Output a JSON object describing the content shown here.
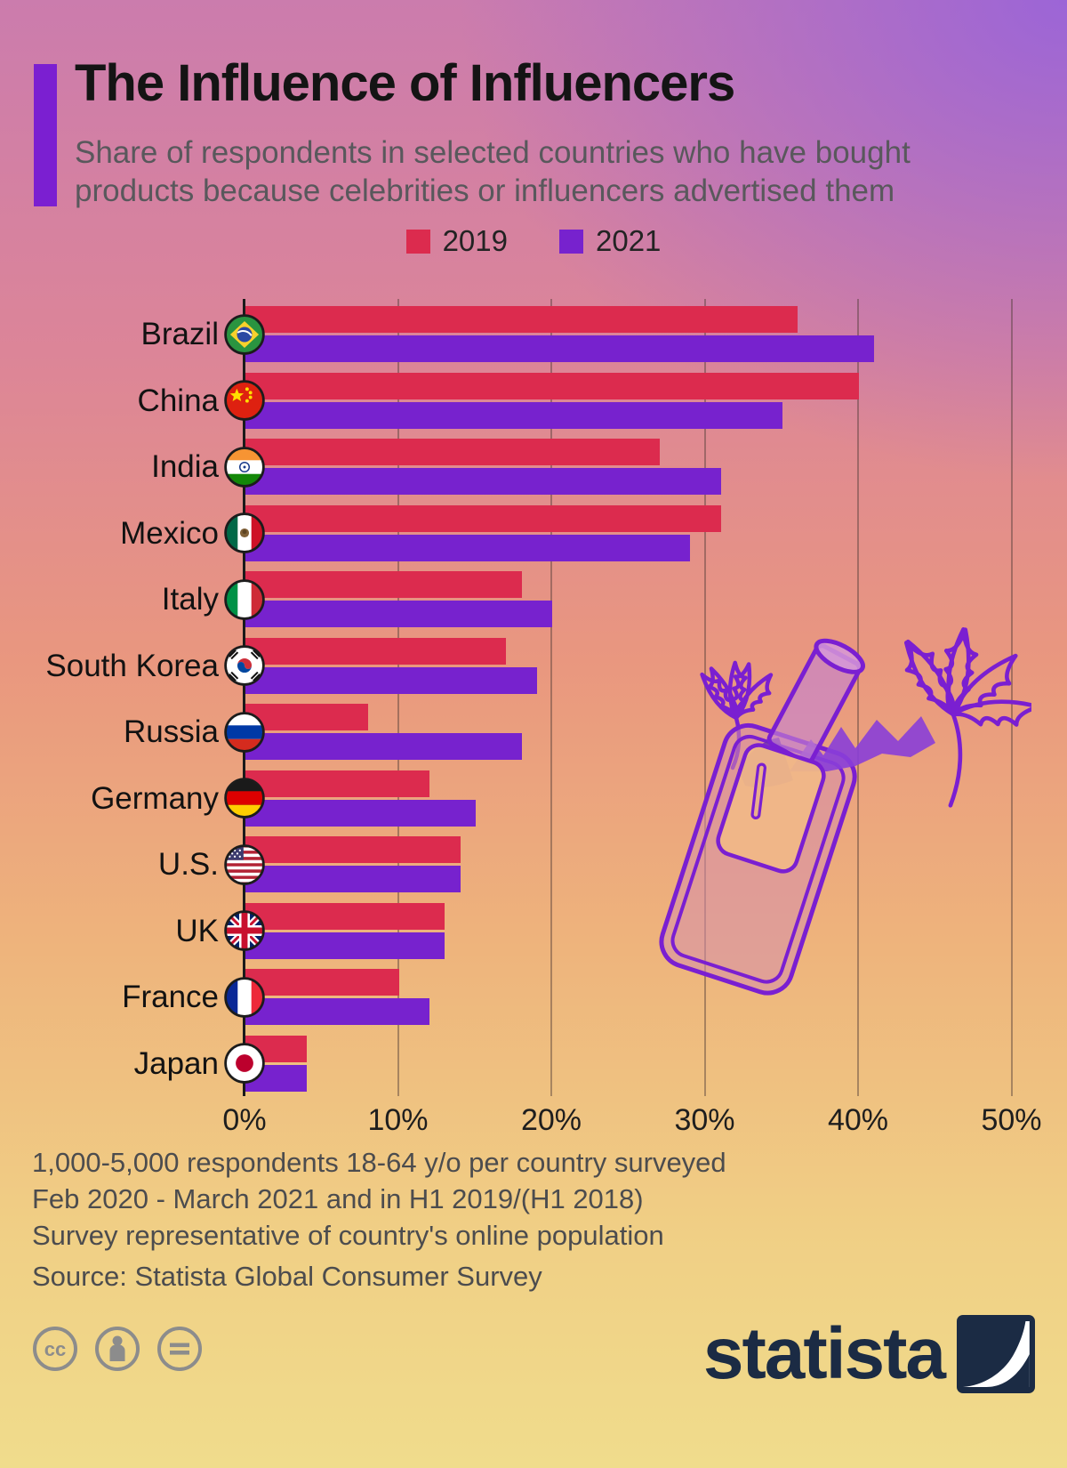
{
  "header": {
    "title": "The Influence of Influencers",
    "subtitle_line1": "Share of respondents in selected countries who have bought",
    "subtitle_line2": "products because celebrities or influencers advertised them"
  },
  "legend": {
    "items": [
      {
        "label": "2019",
        "color": "#dc2b4e"
      },
      {
        "label": "2021",
        "color": "#7722ce"
      }
    ]
  },
  "chart_data": {
    "type": "bar",
    "orientation": "horizontal",
    "title": "Share of respondents who bought products because celebrities or influencers advertised them",
    "unit": "%",
    "categories": [
      "Brazil",
      "China",
      "India",
      "Mexico",
      "Italy",
      "South Korea",
      "Russia",
      "Germany",
      "U.S.",
      "UK",
      "France",
      "Japan"
    ],
    "series": [
      {
        "name": "2019",
        "color": "#dc2b4e",
        "values": [
          36,
          40,
          27,
          31,
          18,
          17,
          8,
          12,
          14,
          13,
          10,
          4
        ]
      },
      {
        "name": "2021",
        "color": "#7722ce",
        "values": [
          41,
          35,
          31,
          29,
          20,
          19,
          18,
          15,
          14,
          13,
          12,
          4
        ]
      }
    ],
    "x_ticks": [
      "0%",
      "10%",
      "20%",
      "30%",
      "40%",
      "50%"
    ],
    "xlim": [
      0,
      50
    ],
    "grid": "vertical",
    "legend_position": "top"
  },
  "footer": {
    "notes": [
      "1,000-5,000 respondents 18-64 y/o per country surveyed",
      "Feb 2020 - March 2021 and in H1 2019/(H1 2018)",
      "Survey representative of country's online population"
    ],
    "source": "Source: Statista Global Consumer Survey",
    "brand": "statista",
    "license_icons": [
      "cc-icon",
      "attribution-icon",
      "no-derivatives-icon"
    ]
  },
  "colors": {
    "accent": "#7b1fd1",
    "bar_2019": "#dc2b4e",
    "bar_2021": "#7722ce",
    "statista_navy": "#1b2b44",
    "license_gray": "#8c8c8c"
  }
}
